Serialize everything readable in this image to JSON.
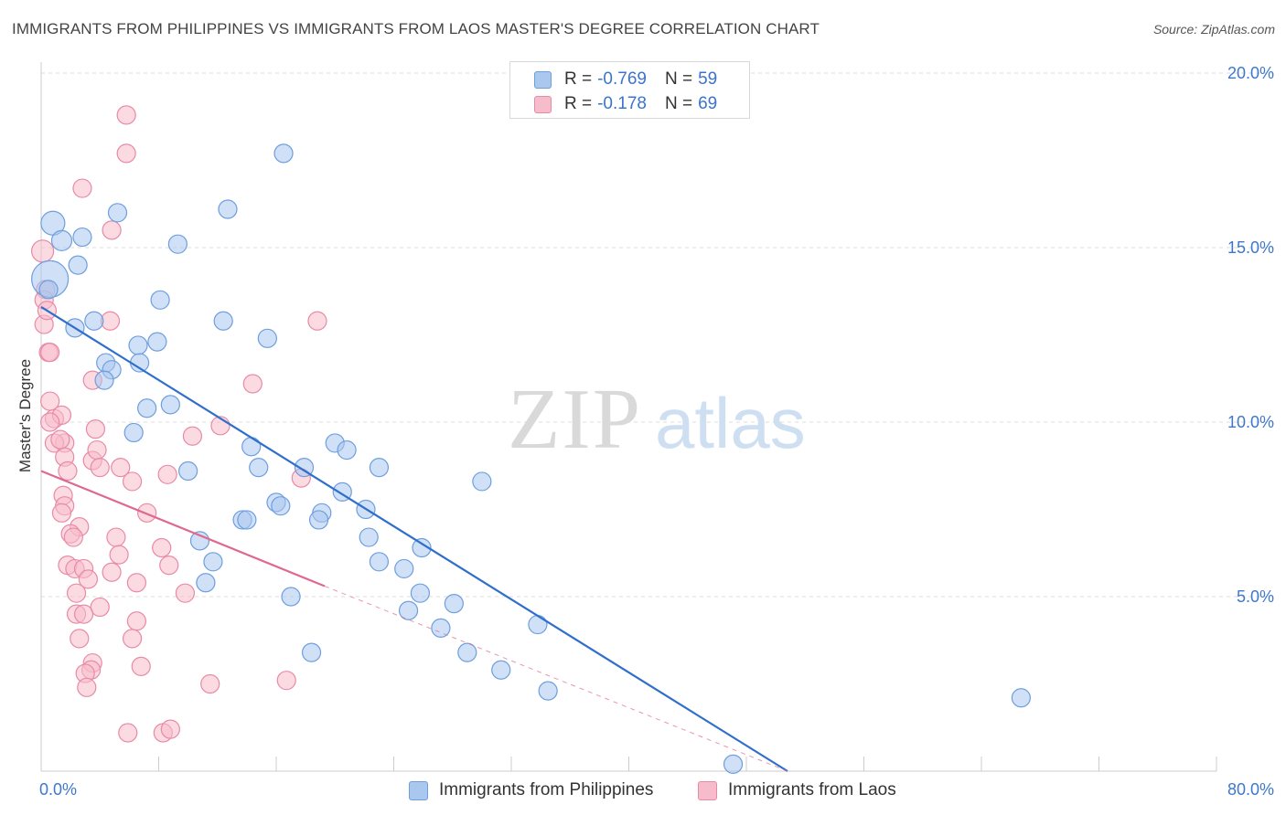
{
  "title": "IMMIGRANTS FROM PHILIPPINES VS IMMIGRANTS FROM LAOS MASTER'S DEGREE CORRELATION CHART",
  "source": "Source: ZipAtlas.com",
  "watermark": {
    "zip": "ZIP",
    "atlas": "atlas"
  },
  "colors": {
    "blue_fill": "#a9c7ef",
    "blue_stroke": "#6d9ede",
    "blue_line": "#2f6fcc",
    "pink_fill": "#f7bccb",
    "pink_stroke": "#e88aa6",
    "pink_line": "#e06890",
    "tick_label": "#3d78cc",
    "grid": "#dddddd"
  },
  "legend_top": {
    "rows": [
      {
        "r_label": "R =",
        "r_value": "-0.769",
        "n_label": "N =",
        "n_value": "59",
        "color": "blue"
      },
      {
        "r_label": "R =",
        "r_value": "-0.178",
        "n_label": "N =",
        "n_value": "69",
        "color": "pink"
      }
    ]
  },
  "chart_data": {
    "type": "scatter",
    "title": "IMMIGRANTS FROM PHILIPPINES VS IMMIGRANTS FROM LAOS MASTER'S DEGREE CORRELATION CHART",
    "xlabel": "",
    "ylabel": "Master's Degree",
    "xlim": [
      0,
      80
    ],
    "ylim": [
      0,
      20
    ],
    "x_tick_labels": [
      "0.0%",
      "80.0%"
    ],
    "y_ticks": [
      5,
      10,
      15,
      20
    ],
    "y_tick_labels": [
      "5.0%",
      "10.0%",
      "15.0%",
      "20.0%"
    ],
    "grid": "horizontal dashed",
    "legend_position": "bottom",
    "series": [
      {
        "name": "Immigrants from Philippines",
        "color": "blue",
        "trend": {
          "x": [
            0,
            50.8
          ],
          "y": [
            13.3,
            0
          ]
        },
        "points": [
          [
            0.6,
            14.1,
            20
          ],
          [
            0.8,
            15.7,
            13
          ],
          [
            1.4,
            15.2,
            11
          ],
          [
            2.8,
            15.3,
            10
          ],
          [
            2.5,
            14.5,
            10
          ],
          [
            2.3,
            12.7,
            10
          ],
          [
            3.6,
            12.9,
            10
          ],
          [
            5.2,
            16.0,
            10
          ],
          [
            8.1,
            13.5,
            10
          ],
          [
            9.3,
            15.1,
            10
          ],
          [
            12.7,
            16.1,
            10
          ],
          [
            16.5,
            17.7,
            10
          ],
          [
            6.6,
            12.2,
            10
          ],
          [
            7.9,
            12.3,
            10
          ],
          [
            12.4,
            12.9,
            10
          ],
          [
            15.4,
            12.4,
            10
          ],
          [
            4.4,
            11.7,
            10
          ],
          [
            4.8,
            11.5,
            10
          ],
          [
            6.7,
            11.7,
            10
          ],
          [
            4.3,
            11.2,
            10
          ],
          [
            7.2,
            10.4,
            10
          ],
          [
            8.8,
            10.5,
            10
          ],
          [
            6.3,
            9.7,
            10
          ],
          [
            10.0,
            8.6,
            10
          ],
          [
            14.3,
            9.3,
            10
          ],
          [
            14.8,
            8.7,
            10
          ],
          [
            17.9,
            8.7,
            10
          ],
          [
            20.0,
            9.4,
            10
          ],
          [
            20.8,
            9.2,
            10
          ],
          [
            23.0,
            8.7,
            10
          ],
          [
            30.0,
            8.3,
            10
          ],
          [
            16.0,
            7.7,
            10
          ],
          [
            16.3,
            7.6,
            10
          ],
          [
            19.1,
            7.4,
            10
          ],
          [
            18.9,
            7.2,
            10
          ],
          [
            20.5,
            8.0,
            10
          ],
          [
            22.1,
            7.5,
            10
          ],
          [
            13.7,
            7.2,
            10
          ],
          [
            14.0,
            7.2,
            10
          ],
          [
            10.8,
            6.6,
            10
          ],
          [
            11.7,
            6.0,
            10
          ],
          [
            11.2,
            5.4,
            10
          ],
          [
            22.3,
            6.7,
            10
          ],
          [
            23.0,
            6.0,
            10
          ],
          [
            24.7,
            5.8,
            10
          ],
          [
            25.9,
            6.4,
            10
          ],
          [
            17.0,
            5.0,
            10
          ],
          [
            25.0,
            4.6,
            10
          ],
          [
            25.8,
            5.1,
            10
          ],
          [
            28.1,
            4.8,
            10
          ],
          [
            27.2,
            4.1,
            10
          ],
          [
            33.8,
            4.2,
            10
          ],
          [
            18.4,
            3.4,
            10
          ],
          [
            29.0,
            3.4,
            10
          ],
          [
            31.3,
            2.9,
            10
          ],
          [
            34.5,
            2.3,
            10
          ],
          [
            66.7,
            2.1,
            10
          ],
          [
            47.1,
            0.2,
            10
          ],
          [
            0.5,
            13.8,
            10
          ]
        ]
      },
      {
        "name": "Immigrants from Laos",
        "color": "pink",
        "trend": {
          "x": [
            0,
            19.3
          ],
          "y": [
            8.6,
            5.3
          ]
        },
        "trend_dashed": {
          "x": [
            19.3,
            50.8
          ],
          "y": [
            5.3,
            0
          ]
        },
        "points": [
          [
            0.1,
            14.9,
            12
          ],
          [
            0.3,
            13.8,
            10
          ],
          [
            0.2,
            13.5,
            10
          ],
          [
            4.8,
            15.5,
            10
          ],
          [
            2.8,
            16.7,
            10
          ],
          [
            5.8,
            17.7,
            10
          ],
          [
            5.8,
            18.8,
            10
          ],
          [
            0.5,
            12.0,
            10
          ],
          [
            0.6,
            12.0,
            10
          ],
          [
            4.7,
            12.9,
            10
          ],
          [
            18.8,
            12.9,
            10
          ],
          [
            14.4,
            11.1,
            10
          ],
          [
            3.5,
            11.2,
            10
          ],
          [
            0.6,
            10.6,
            10
          ],
          [
            0.9,
            10.1,
            10
          ],
          [
            1.4,
            10.2,
            10
          ],
          [
            0.6,
            10.0,
            10
          ],
          [
            3.7,
            9.8,
            10
          ],
          [
            1.6,
            9.4,
            10
          ],
          [
            0.9,
            9.4,
            10
          ],
          [
            1.6,
            9.0,
            10
          ],
          [
            3.5,
            8.9,
            10
          ],
          [
            3.8,
            9.2,
            10
          ],
          [
            5.4,
            8.7,
            10
          ],
          [
            4.0,
            8.7,
            10
          ],
          [
            1.8,
            8.6,
            10
          ],
          [
            6.2,
            8.3,
            10
          ],
          [
            8.6,
            8.5,
            10
          ],
          [
            17.7,
            8.4,
            10
          ],
          [
            10.3,
            9.6,
            10
          ],
          [
            1.5,
            7.9,
            10
          ],
          [
            1.6,
            7.6,
            10
          ],
          [
            7.2,
            7.4,
            10
          ],
          [
            1.4,
            7.4,
            10
          ],
          [
            2.6,
            7.0,
            10
          ],
          [
            2.0,
            6.8,
            10
          ],
          [
            2.2,
            6.7,
            10
          ],
          [
            5.1,
            6.7,
            10
          ],
          [
            8.2,
            6.4,
            10
          ],
          [
            5.3,
            6.2,
            10
          ],
          [
            1.8,
            5.9,
            10
          ],
          [
            2.3,
            5.8,
            10
          ],
          [
            2.9,
            5.8,
            10
          ],
          [
            8.7,
            5.9,
            10
          ],
          [
            4.8,
            5.7,
            10
          ],
          [
            3.2,
            5.5,
            10
          ],
          [
            6.5,
            5.4,
            10
          ],
          [
            9.8,
            5.1,
            10
          ],
          [
            2.4,
            5.1,
            10
          ],
          [
            4.0,
            4.7,
            10
          ],
          [
            2.4,
            4.5,
            10
          ],
          [
            2.9,
            4.5,
            10
          ],
          [
            6.5,
            4.3,
            10
          ],
          [
            2.6,
            3.8,
            10
          ],
          [
            6.2,
            3.8,
            10
          ],
          [
            3.5,
            3.1,
            10
          ],
          [
            6.8,
            3.0,
            10
          ],
          [
            3.4,
            2.9,
            10
          ],
          [
            3.0,
            2.8,
            10
          ],
          [
            3.1,
            2.4,
            10
          ],
          [
            11.5,
            2.5,
            10
          ],
          [
            16.7,
            2.6,
            10
          ],
          [
            5.9,
            1.1,
            10
          ],
          [
            8.3,
            1.1,
            10
          ],
          [
            8.8,
            1.2,
            10
          ],
          [
            12.2,
            9.9,
            10
          ],
          [
            0.2,
            12.8,
            10
          ],
          [
            1.3,
            9.5,
            10
          ],
          [
            0.4,
            13.2,
            10
          ]
        ]
      }
    ]
  },
  "bottom_legend": [
    {
      "label": "Immigrants from Philippines",
      "color": "blue"
    },
    {
      "label": "Immigrants from Laos",
      "color": "pink"
    }
  ]
}
